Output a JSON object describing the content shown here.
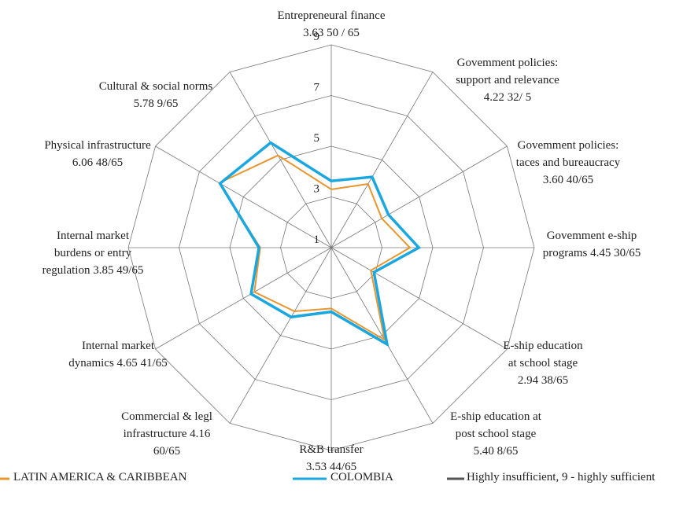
{
  "chart_data": {
    "type": "radar",
    "categories": [
      [
        "Entrepreneural finance",
        "3.63 50 / 65"
      ],
      [
        "Govemment policies:",
        "support and relevance",
        "4.22 32/ 5"
      ],
      [
        "Govemment policies:",
        "taces and bureaucracy",
        "3.60 40/65"
      ],
      [
        "Govemment e-ship",
        "programs 4.45 30/65"
      ],
      [
        "E-ship education",
        "at school stage",
        "2.94 38/65"
      ],
      [
        "E-ship education at",
        "post school stage",
        "5.40 8/65"
      ],
      [
        "R&B transfer",
        "3.53 44/65"
      ],
      [
        "Commercial & legl",
        "infrastructure 4.16",
        "60/65"
      ],
      [
        "Internal market",
        "dynamics 4.65 41/65"
      ],
      [
        "Internal market",
        "burdens or entry",
        "regulation 3.85 49/65"
      ],
      [
        "Physical infrastructure",
        "6.06 48/65"
      ],
      [
        "Cultural & social norms",
        "5.78 9/65"
      ]
    ],
    "series": [
      {
        "name": "LATIN AMERICA & CARIBBEAN",
        "color": "#e8962e",
        "values": [
          3.3,
          3.9,
          3.3,
          4.1,
          2.8,
          5.2,
          3.4,
          3.9,
          4.5,
          3.8,
          6.1,
          5.2
        ]
      },
      {
        "name": "COLOMBIA",
        "color": "#1aa7e0",
        "values": [
          3.63,
          4.22,
          3.6,
          4.45,
          2.94,
          5.4,
          3.53,
          4.16,
          4.65,
          3.85,
          6.06,
          5.78
        ]
      }
    ],
    "scale_note": {
      "name": "Highly insufficient, 9 - highly sufficient",
      "color": "#555555"
    },
    "ylim": [
      1,
      9
    ],
    "yticks": [
      1,
      3,
      5,
      7,
      9
    ],
    "grid": true
  }
}
